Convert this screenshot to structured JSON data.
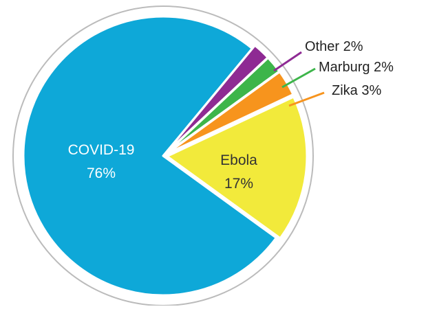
{
  "chart_data": {
    "type": "pie",
    "title": "",
    "slices": [
      {
        "label": "COVID-19",
        "value": 76,
        "value_label": "76%",
        "color": "#0EA8D8",
        "label_placement": "inside",
        "text_color": "#ffffff"
      },
      {
        "label": "Ebola",
        "value": 17,
        "value_label": "17%",
        "color": "#F2EA3B",
        "label_placement": "inside",
        "text_color": "#333333"
      },
      {
        "label": "Zika",
        "value": 3,
        "value_label": "3%",
        "color": "#F7941D",
        "label_placement": "outside",
        "text_color": "#222222"
      },
      {
        "label": "Marburg",
        "value": 2,
        "value_label": "2%",
        "color": "#3DB54A",
        "label_placement": "outside",
        "text_color": "#222222"
      },
      {
        "label": "Other",
        "value": 2,
        "value_label": "2%",
        "color": "#8E2A93",
        "label_placement": "outside",
        "text_color": "#222222"
      }
    ],
    "outline_color": "#BBBBBB",
    "exploded_slices": [
      "Ebola",
      "Zika",
      "Marburg",
      "Other"
    ]
  }
}
